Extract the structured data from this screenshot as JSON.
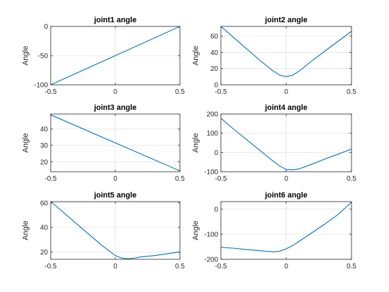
{
  "chart_data": [
    {
      "type": "line",
      "title": "joint1 angle",
      "ylabel": "Angle",
      "xlim": [
        -0.5,
        0.5
      ],
      "ylim": [
        -100,
        0
      ],
      "xticks": [
        -0.5,
        0,
        0.5
      ],
      "yticks": [
        -100,
        -50,
        0
      ],
      "xtick_labels": [
        "-0.5",
        "0",
        "0.5"
      ],
      "ytick_labels": [
        "-100",
        "-50",
        "0"
      ],
      "grid": true,
      "series": [
        {
          "x": [
            -0.5,
            0.5
          ],
          "y": [
            -100,
            0
          ]
        }
      ]
    },
    {
      "type": "line",
      "title": "joint2 angle",
      "ylabel": "Angle",
      "xlim": [
        -0.5,
        0.5
      ],
      "ylim": [
        0,
        72
      ],
      "xticks": [
        -0.5,
        0,
        0.5
      ],
      "yticks": [
        0,
        20,
        40,
        60
      ],
      "xtick_labels": [
        "-0.5",
        "0",
        "0.5"
      ],
      "ytick_labels": [
        "0",
        "20",
        "40",
        "60"
      ],
      "grid": true,
      "series": [
        {
          "x": [
            -0.5,
            -0.4,
            -0.3,
            -0.2,
            -0.1,
            -0.05,
            0,
            0.05,
            0.1,
            0.2,
            0.3,
            0.4,
            0.5
          ],
          "y": [
            72,
            58,
            44,
            30,
            17,
            12,
            10,
            12,
            17,
            30,
            42,
            54,
            66
          ]
        }
      ]
    },
    {
      "type": "line",
      "title": "joint3 angle",
      "ylabel": "Angle",
      "xlim": [
        -0.5,
        0.5
      ],
      "ylim": [
        14,
        49
      ],
      "xticks": [
        -0.5,
        0,
        0.5
      ],
      "yticks": [
        20,
        30,
        40
      ],
      "xtick_labels": [
        "-0.5",
        "0",
        "0.5"
      ],
      "ytick_labels": [
        "20",
        "30",
        "40"
      ],
      "grid": true,
      "series": [
        {
          "x": [
            -0.5,
            0.5
          ],
          "y": [
            48.5,
            14.5
          ]
        }
      ]
    },
    {
      "type": "line",
      "title": "joint4 angle",
      "ylabel": "Angle",
      "xlim": [
        -0.5,
        0.5
      ],
      "ylim": [
        -100,
        200
      ],
      "xticks": [
        -0.5,
        0,
        0.5
      ],
      "yticks": [
        -100,
        0,
        100,
        200
      ],
      "xtick_labels": [
        "-0.5",
        "0",
        "0.5"
      ],
      "ytick_labels": [
        "-100",
        "0",
        "100",
        "200"
      ],
      "grid": true,
      "series": [
        {
          "x": [
            -0.5,
            -0.4,
            -0.3,
            -0.2,
            -0.1,
            -0.05,
            0,
            0.05,
            0.1,
            0.2,
            0.3,
            0.4,
            0.5
          ],
          "y": [
            178,
            120,
            65,
            10,
            -45,
            -70,
            -88,
            -90,
            -85,
            -60,
            -33,
            -8,
            18
          ]
        }
      ]
    },
    {
      "type": "line",
      "title": "joint5 angle",
      "ylabel": "Angle",
      "xlim": [
        -0.5,
        0.5
      ],
      "ylim": [
        14,
        61
      ],
      "xticks": [
        -0.5,
        0,
        0.5
      ],
      "yticks": [
        20,
        40,
        60
      ],
      "xtick_labels": [
        "-0.5",
        "0",
        "0.5"
      ],
      "ytick_labels": [
        "20",
        "40",
        "60"
      ],
      "grid": true,
      "series": [
        {
          "x": [
            -0.5,
            -0.4,
            -0.3,
            -0.2,
            -0.1,
            0,
            0.05,
            0.1,
            0.15,
            0.2,
            0.3,
            0.4,
            0.5
          ],
          "y": [
            61,
            52,
            43,
            34,
            25,
            17,
            15,
            14.5,
            15,
            16,
            17,
            18.5,
            20
          ]
        }
      ]
    },
    {
      "type": "line",
      "title": "joint6 angle",
      "ylabel": "Angle",
      "xlim": [
        -0.5,
        0.5
      ],
      "ylim": [
        -200,
        30
      ],
      "xticks": [
        -0.5,
        0,
        0.5
      ],
      "yticks": [
        -200,
        -100,
        0
      ],
      "xtick_labels": [
        "-0.5",
        "0",
        "0.5"
      ],
      "ytick_labels": [
        "-200",
        "-100",
        "0"
      ],
      "grid": true,
      "series": [
        {
          "x": [
            -0.5,
            -0.4,
            -0.3,
            -0.2,
            -0.1,
            -0.05,
            0,
            0.05,
            0.1,
            0.2,
            0.3,
            0.4,
            0.5
          ],
          "y": [
            -152,
            -156,
            -161,
            -166,
            -170,
            -168,
            -158,
            -145,
            -128,
            -93,
            -58,
            -20,
            28
          ]
        }
      ]
    }
  ]
}
